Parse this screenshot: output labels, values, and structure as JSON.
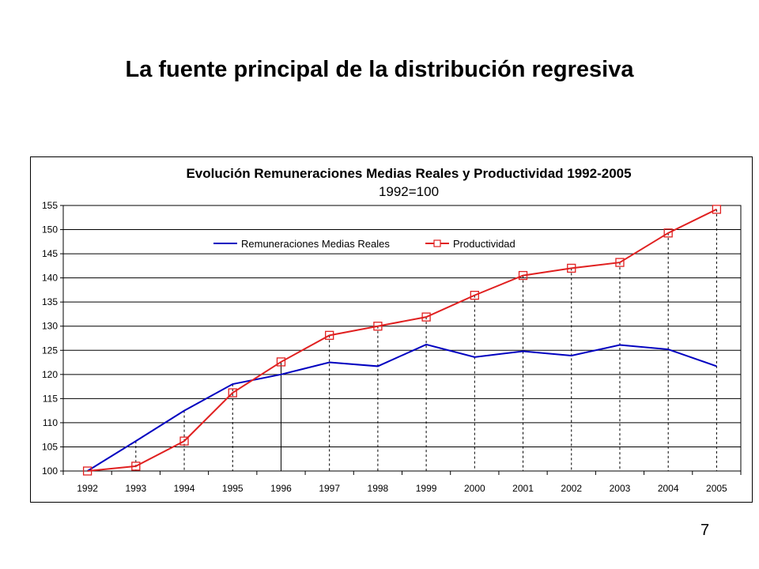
{
  "slide": {
    "title": "La fuente principal de la distribución regresiva",
    "page_number": "7"
  },
  "chart_data": {
    "type": "line",
    "title": "Evolución Remuneraciones Medias Reales y Productividad 1992-2005",
    "subtitle": "1992=100",
    "categories": [
      "1992",
      "1993",
      "1994",
      "1995",
      "1996",
      "1997",
      "1998",
      "1999",
      "2000",
      "2001",
      "2002",
      "2003",
      "2004",
      "2005"
    ],
    "ylim": [
      100,
      155
    ],
    "yticks": [
      100,
      105,
      110,
      115,
      120,
      125,
      130,
      135,
      140,
      145,
      150,
      155
    ],
    "grid": "horizontal",
    "legend_position": "top-center",
    "series": [
      {
        "name": "Remuneraciones Medias Reales",
        "color": "#0000c0",
        "marker": "none",
        "values": [
          100,
          106.2,
          112.5,
          118,
          120,
          122.5,
          121.7,
          126.2,
          123.6,
          124.8,
          123.9,
          126.1,
          125.2,
          121.7
        ]
      },
      {
        "name": "Productividad",
        "color": "#e02020",
        "marker": "square",
        "values": [
          100,
          101,
          106.2,
          116.2,
          122.6,
          128.1,
          130,
          131.9,
          136.4,
          140.5,
          142,
          143.2,
          149.3,
          154.2
        ]
      }
    ]
  }
}
